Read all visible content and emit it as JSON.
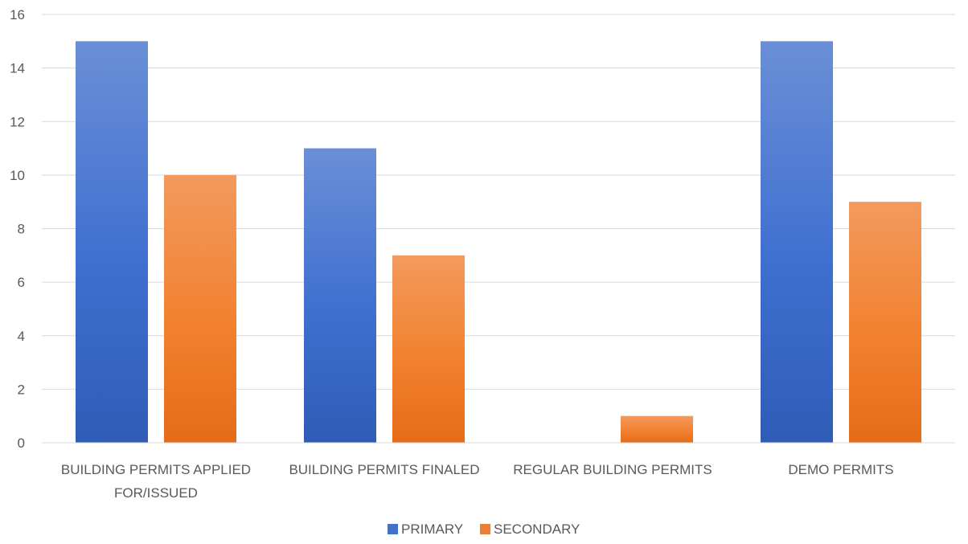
{
  "chart_data": {
    "type": "bar",
    "title": "",
    "xlabel": "",
    "ylabel": "",
    "categories": [
      [
        "BUILDING PERMITS APPLIED",
        "FOR/ISSUED"
      ],
      [
        "BUILDING PERMITS FINALED"
      ],
      [
        "REGULAR BUILDING PERMITS"
      ],
      [
        "DEMO PERMITS"
      ]
    ],
    "series": [
      {
        "name": "PRIMARY",
        "values": [
          15,
          11,
          0,
          15
        ],
        "color": "#4472C4"
      },
      {
        "name": "SECONDARY",
        "values": [
          10,
          7,
          1,
          9
        ],
        "color": "#ED7D31"
      }
    ],
    "ylim": [
      0,
      16
    ],
    "yticks": [
      0,
      2,
      4,
      6,
      8,
      10,
      12,
      14,
      16
    ],
    "grid": true,
    "legend_position": "bottom-center"
  }
}
